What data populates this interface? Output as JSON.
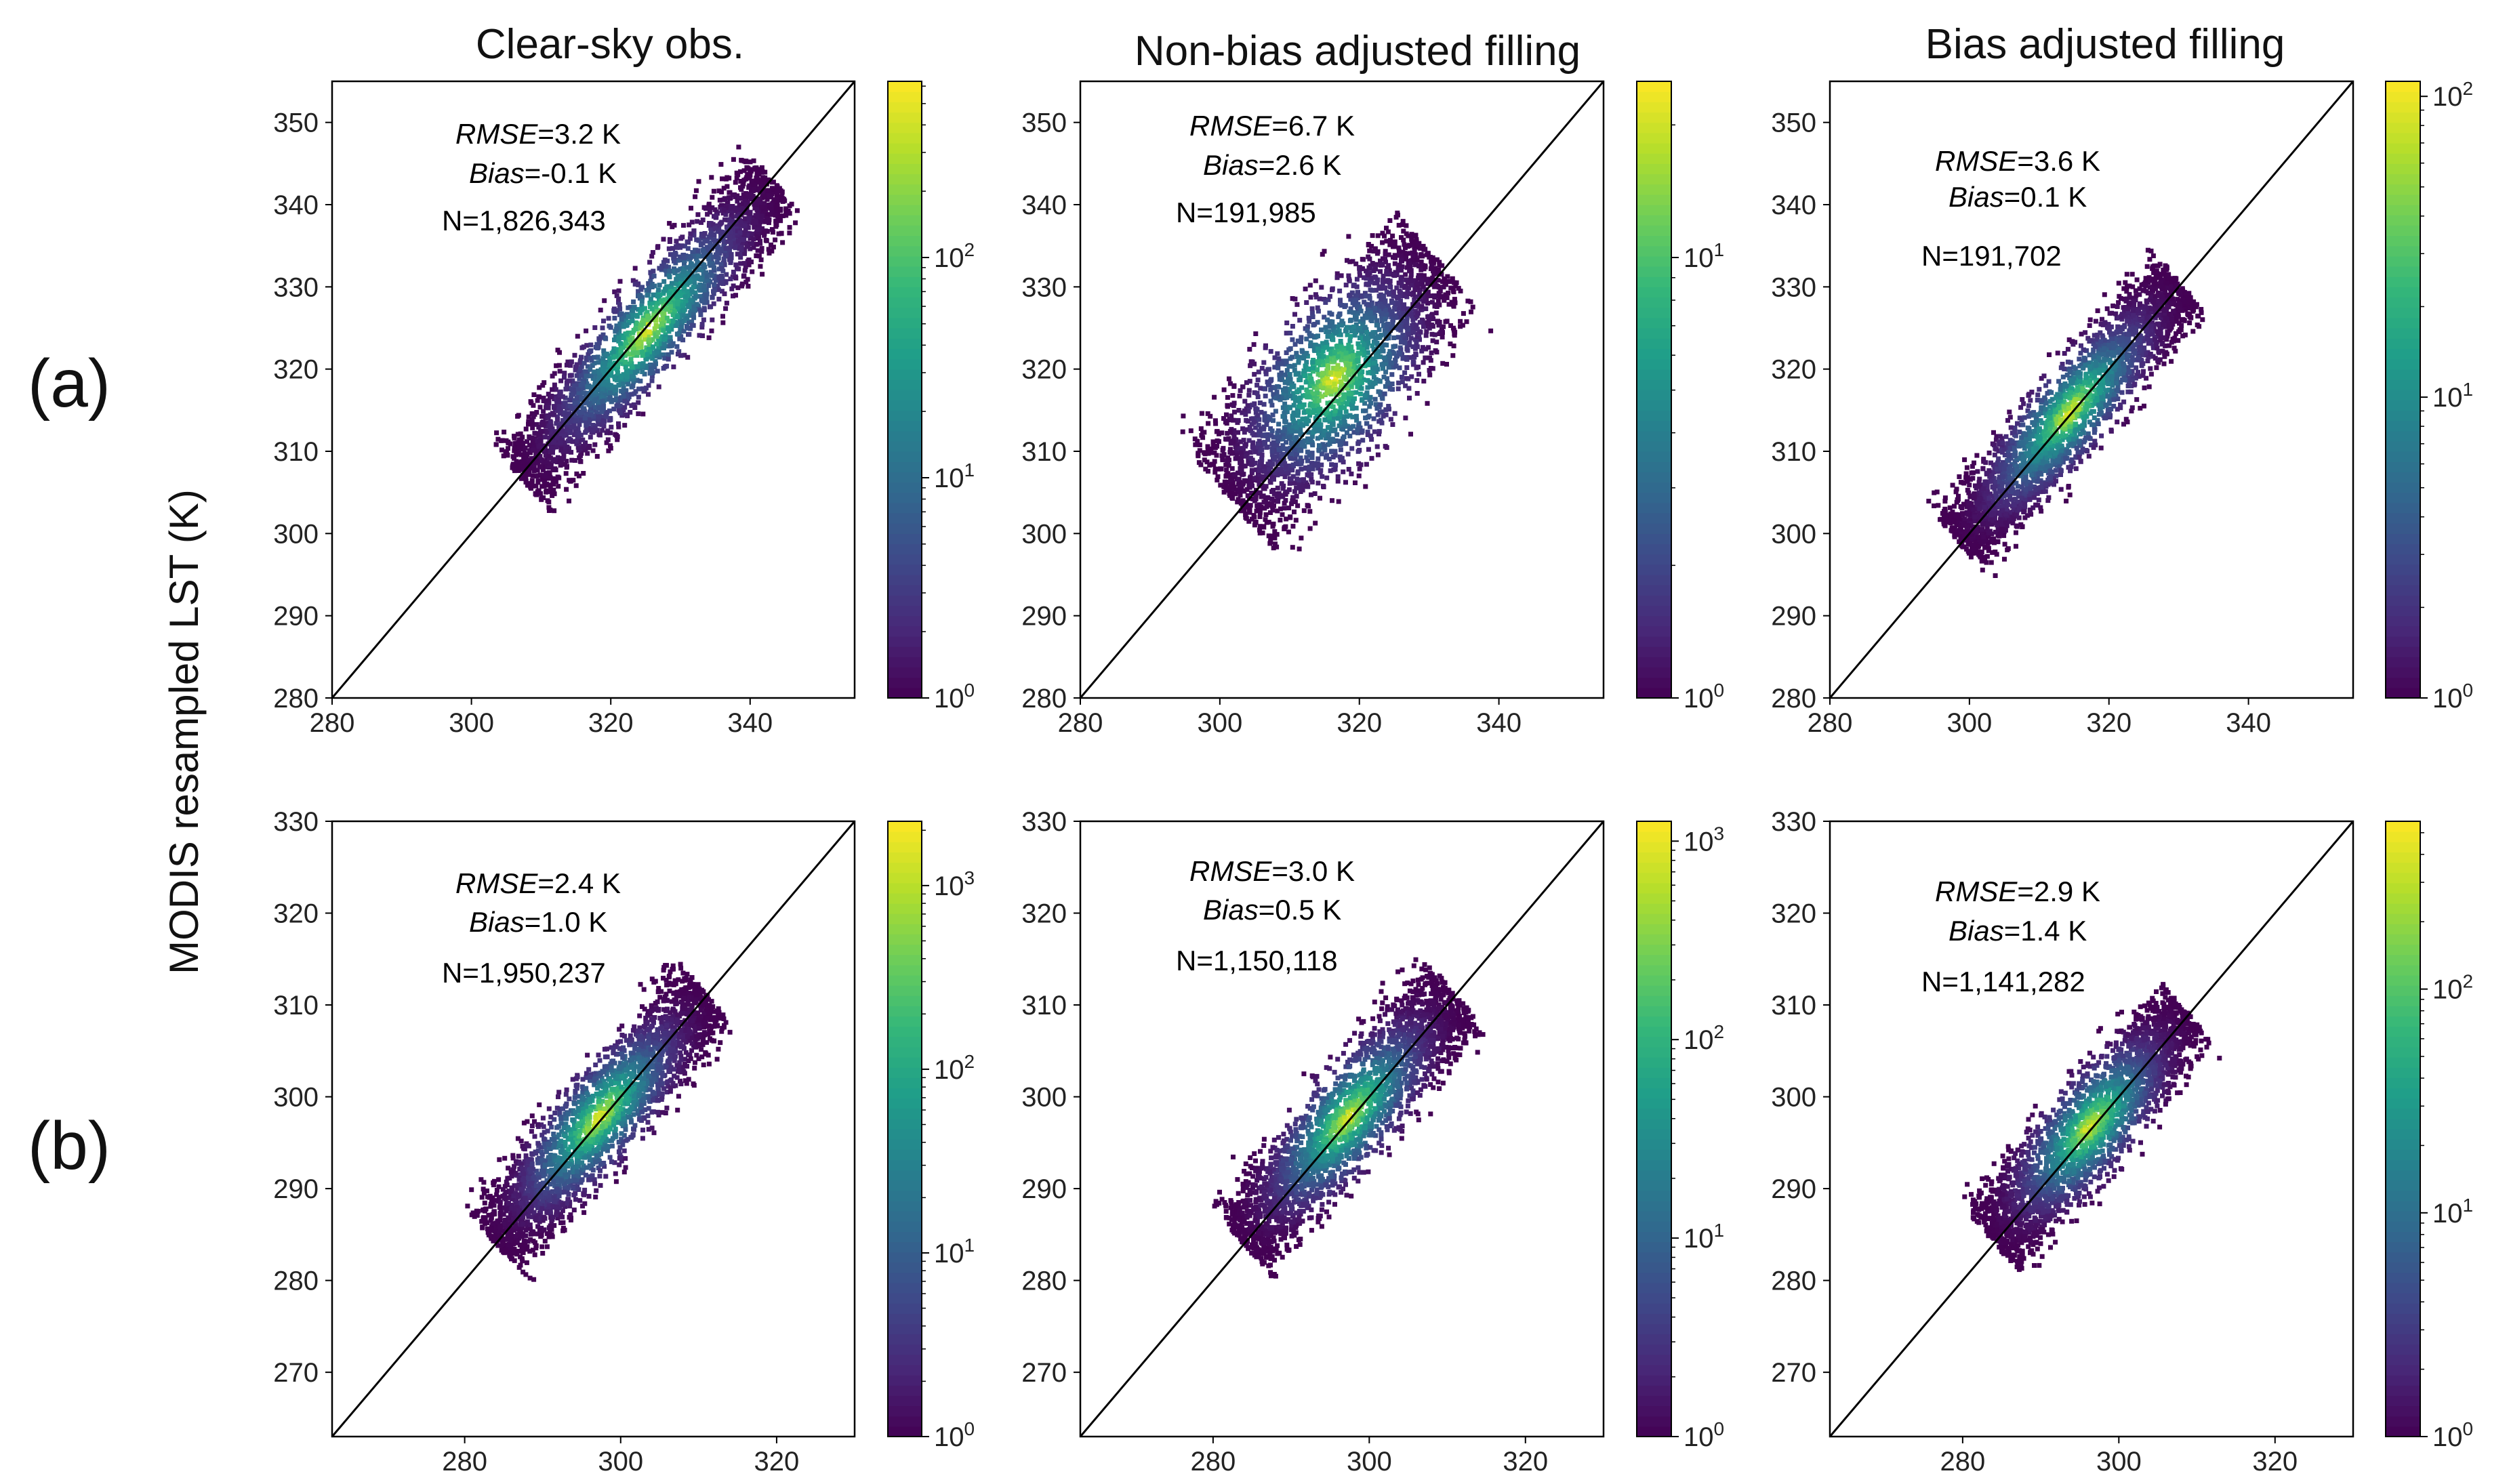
{
  "figure": {
    "ylabel": "MODIS resampled LST (K)",
    "column_titles": [
      "Clear-sky obs.",
      "Non-bias adjusted filling",
      "Bias adjusted filling"
    ],
    "row_labels": [
      "(a)",
      "(b)"
    ]
  },
  "colormap": [
    "#440154",
    "#482878",
    "#3e4989",
    "#31688e",
    "#26828e",
    "#1f9e89",
    "#35b779",
    "#6ece58",
    "#b5de2b",
    "#fde725"
  ],
  "chart_data": [
    {
      "type": "scatter",
      "row": 0,
      "col": 0,
      "title": "Clear-sky obs.",
      "xlabel": "",
      "ylabel": "MODIS resampled LST (K)",
      "xlim": [
        280,
        355
      ],
      "ylim": [
        280,
        355
      ],
      "xticks": [
        280,
        300,
        320,
        340
      ],
      "yticks": [
        280,
        290,
        300,
        310,
        320,
        330,
        340,
        350
      ],
      "stats": {
        "rmse_label": "RMSE",
        "rmse_value": "=3.2 K",
        "bias_label": "Bias",
        "bias_value": "=-0.1 K",
        "n": "N=1,826,343"
      },
      "density": {
        "center": [
          325,
          325
        ],
        "spread_major": 16,
        "spread_minor": 3.6,
        "range_min": 288,
        "range_max": 346
      },
      "colorbar": {
        "min_exp": 0,
        "max_exp": 2.8,
        "tick_exps": [
          0,
          1,
          2
        ],
        "tick_labels": [
          "10",
          "10",
          "10"
        ]
      }
    },
    {
      "type": "scatter",
      "row": 0,
      "col": 1,
      "title": "Non-bias adjusted filling",
      "xlabel": "",
      "ylabel": "",
      "xlim": [
        280,
        355
      ],
      "ylim": [
        280,
        355
      ],
      "xticks": [
        280,
        300,
        320,
        340
      ],
      "yticks": [
        280,
        290,
        300,
        310,
        320,
        330,
        340,
        350
      ],
      "stats": {
        "rmse_label": "RMSE",
        "rmse_value": "=6.7 K",
        "bias_label": "Bias",
        "bias_value": "=2.6 K",
        "n": "N=191,985"
      },
      "density": {
        "center": [
          316,
          319
        ],
        "spread_major": 13,
        "spread_minor": 6,
        "range_min": 292,
        "range_max": 340
      },
      "colorbar": {
        "min_exp": 0,
        "max_exp": 1.4,
        "tick_exps": [
          0,
          1
        ],
        "tick_labels": [
          "10",
          "10"
        ]
      }
    },
    {
      "type": "scatter",
      "row": 0,
      "col": 2,
      "title": "Bias adjusted filling",
      "xlabel": "",
      "ylabel": "",
      "xlim": [
        280,
        355
      ],
      "ylim": [
        280,
        355
      ],
      "xticks": [
        280,
        300,
        320,
        340
      ],
      "yticks": [
        280,
        290,
        300,
        310,
        320,
        330,
        340,
        350
      ],
      "stats": {
        "rmse_label": "RMSE",
        "rmse_value": "=3.6 K",
        "bias_label": "Bias",
        "bias_value": "=0.1 K",
        "n": "N=191,702"
      },
      "density": {
        "center": [
          314,
          315
        ],
        "spread_major": 14,
        "spread_minor": 3.4,
        "range_min": 288,
        "range_max": 342
      },
      "colorbar": {
        "min_exp": 0,
        "max_exp": 2.05,
        "tick_exps": [
          0,
          1,
          2
        ],
        "tick_labels": [
          "10",
          "10",
          "10"
        ]
      }
    },
    {
      "type": "scatter",
      "row": 1,
      "col": 0,
      "title": "",
      "xlabel": "",
      "ylabel": "MODIS resampled LST (K)",
      "xlim": [
        263,
        330
      ],
      "ylim": [
        263,
        330
      ],
      "xticks": [
        280,
        300,
        320
      ],
      "yticks": [
        270,
        280,
        290,
        300,
        310,
        320,
        330
      ],
      "stats": {
        "rmse_label": "RMSE",
        "rmse_value": "=2.4 K",
        "bias_label": "Bias",
        "bias_value": "=1.0 K",
        "n": "N=1,950,237"
      },
      "density": {
        "center": [
          297,
          298
        ],
        "spread_major": 12,
        "spread_minor": 3.2,
        "range_min": 268,
        "range_max": 312
      },
      "colorbar": {
        "min_exp": 0,
        "max_exp": 3.35,
        "tick_exps": [
          0,
          1,
          2,
          3
        ],
        "tick_labels": [
          "10",
          "10",
          "10",
          "10"
        ]
      }
    },
    {
      "type": "scatter",
      "row": 1,
      "col": 1,
      "title": "",
      "xlabel": "",
      "ylabel": "",
      "xlim": [
        263,
        330
      ],
      "ylim": [
        263,
        330
      ],
      "xticks": [
        280,
        300,
        320
      ],
      "yticks": [
        270,
        280,
        290,
        300,
        310,
        320,
        330
      ],
      "stats": {
        "rmse_label": "RMSE",
        "rmse_value": "=3.0 K",
        "bias_label": "Bias",
        "bias_value": "=0.5 K",
        "n": "N=1,150,118"
      },
      "density": {
        "center": [
          297,
          298
        ],
        "spread_major": 12,
        "spread_minor": 3.4,
        "range_min": 268,
        "range_max": 310
      },
      "colorbar": {
        "min_exp": 0,
        "max_exp": 3.1,
        "tick_exps": [
          0,
          1,
          2,
          3
        ],
        "tick_labels": [
          "10",
          "10",
          "10",
          "10"
        ]
      }
    },
    {
      "type": "scatter",
      "row": 1,
      "col": 2,
      "title": "",
      "xlabel": "",
      "ylabel": "",
      "xlim": [
        263,
        330
      ],
      "ylim": [
        263,
        330
      ],
      "xticks": [
        280,
        300,
        320
      ],
      "yticks": [
        270,
        280,
        290,
        300,
        310,
        320,
        330
      ],
      "stats": {
        "rmse_label": "RMSE",
        "rmse_value": "=2.9 K",
        "bias_label": "Bias",
        "bias_value": "=1.4 K",
        "n": "N=1,141,282"
      },
      "density": {
        "center": [
          296,
          297
        ],
        "spread_major": 11,
        "spread_minor": 3.3,
        "range_min": 270,
        "range_max": 310
      },
      "colorbar": {
        "min_exp": 0,
        "max_exp": 2.75,
        "tick_exps": [
          0,
          1,
          2
        ],
        "tick_labels": [
          "10",
          "10",
          "10"
        ]
      }
    }
  ]
}
